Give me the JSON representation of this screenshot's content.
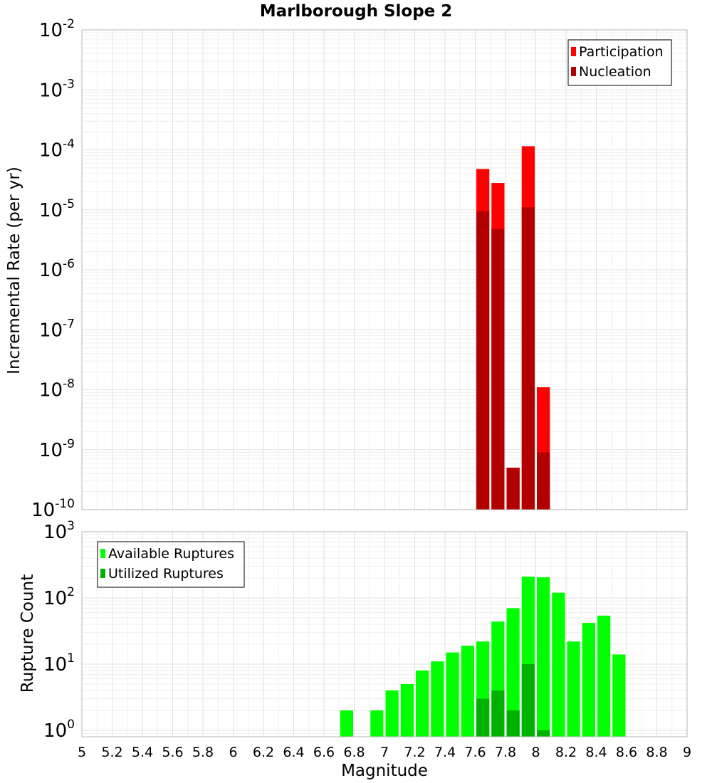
{
  "chart_data": [
    {
      "type": "bar",
      "title": "Marlborough Slope 2",
      "xlabel": "",
      "ylabel": "Incremental Rate (per yr)",
      "yscale": "log",
      "xlim": [
        5,
        9
      ],
      "ylim": [
        1e-10,
        0.01
      ],
      "bin_width": 0.1,
      "grid": true,
      "legend_position": "top-right",
      "ytick_labels": [
        {
          "base": "10",
          "exp": "-10",
          "value": 1e-10
        },
        {
          "base": "10",
          "exp": "-9",
          "value": 1e-09
        },
        {
          "base": "10",
          "exp": "-8",
          "value": 1e-08
        },
        {
          "base": "10",
          "exp": "-7",
          "value": 1e-07
        },
        {
          "base": "10",
          "exp": "-6",
          "value": 1e-06
        },
        {
          "base": "10",
          "exp": "-5",
          "value": 1e-05
        },
        {
          "base": "10",
          "exp": "-4",
          "value": 0.0001
        },
        {
          "base": "10",
          "exp": "-3",
          "value": 0.001
        },
        {
          "base": "10",
          "exp": "-2",
          "value": 0.01
        }
      ],
      "series": [
        {
          "name": "Participation",
          "color": "#ff0000",
          "points": [
            {
              "x": 7.65,
              "y": 4.8e-05
            },
            {
              "x": 7.75,
              "y": 2.8e-05
            },
            {
              "x": 7.85,
              "y": 5e-10
            },
            {
              "x": 7.95,
              "y": 0.000115
            },
            {
              "x": 8.05,
              "y": 1.1e-08
            }
          ]
        },
        {
          "name": "Nucleation",
          "color": "#b20000",
          "points": [
            {
              "x": 7.65,
              "y": 9.5e-06
            },
            {
              "x": 7.75,
              "y": 4.8e-06
            },
            {
              "x": 7.85,
              "y": 5e-10
            },
            {
              "x": 7.95,
              "y": 1.1e-05
            },
            {
              "x": 8.05,
              "y": 9e-10
            }
          ]
        }
      ]
    },
    {
      "type": "bar",
      "title": "",
      "xlabel": "Magnitude",
      "ylabel": "Rupture Count",
      "yscale": "log",
      "xlim": [
        5,
        9
      ],
      "ylim": [
        0.8,
        1000
      ],
      "bin_width": 0.1,
      "grid": true,
      "legend_position": "top-left",
      "xtick_labels": [
        "5",
        "5.2",
        "5.4",
        "5.6",
        "5.8",
        "6",
        "6.2",
        "6.4",
        "6.6",
        "6.8",
        "7",
        "7.2",
        "7.4",
        "7.6",
        "7.8",
        "8",
        "8.2",
        "8.4",
        "8.6",
        "8.8",
        "9"
      ],
      "ytick_labels": [
        {
          "base": "10",
          "exp": "0",
          "value": 1
        },
        {
          "base": "10",
          "exp": "1",
          "value": 10
        },
        {
          "base": "10",
          "exp": "2",
          "value": 100
        },
        {
          "base": "10",
          "exp": "3",
          "value": 1000
        }
      ],
      "series": [
        {
          "name": "Available Ruptures",
          "color": "#00ff00",
          "points": [
            {
              "x": 6.75,
              "y": 2
            },
            {
              "x": 6.95,
              "y": 2
            },
            {
              "x": 7.05,
              "y": 4
            },
            {
              "x": 7.15,
              "y": 5
            },
            {
              "x": 7.25,
              "y": 8
            },
            {
              "x": 7.35,
              "y": 11
            },
            {
              "x": 7.45,
              "y": 15
            },
            {
              "x": 7.55,
              "y": 19
            },
            {
              "x": 7.65,
              "y": 22
            },
            {
              "x": 7.75,
              "y": 44
            },
            {
              "x": 7.85,
              "y": 70
            },
            {
              "x": 7.95,
              "y": 210
            },
            {
              "x": 8.05,
              "y": 205
            },
            {
              "x": 8.15,
              "y": 120
            },
            {
              "x": 8.25,
              "y": 22
            },
            {
              "x": 8.35,
              "y": 42
            },
            {
              "x": 8.45,
              "y": 54
            },
            {
              "x": 8.55,
              "y": 14
            }
          ]
        },
        {
          "name": "Utilized Ruptures",
          "color": "#00b200",
          "points": [
            {
              "x": 7.65,
              "y": 3
            },
            {
              "x": 7.75,
              "y": 4
            },
            {
              "x": 7.85,
              "y": 2
            },
            {
              "x": 7.95,
              "y": 10
            },
            {
              "x": 8.05,
              "y": 1
            }
          ]
        }
      ]
    }
  ]
}
